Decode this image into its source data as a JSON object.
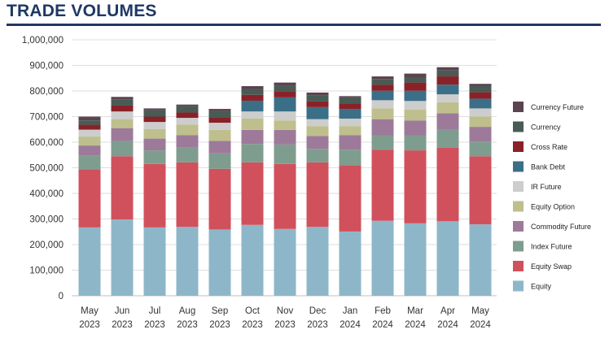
{
  "chart_data": {
    "type": "bar",
    "stacked": true,
    "title": "TRADE VOLUMES",
    "xlabel": "",
    "ylabel": "",
    "ylim": [
      0,
      1000000
    ],
    "yticks": [
      "0",
      "100,000",
      "200,000",
      "300,000",
      "400,000",
      "500,000",
      "600,000",
      "700,000",
      "800,000",
      "900,000",
      "1,000,000"
    ],
    "grid": true,
    "legend_position": "right",
    "categories": [
      [
        "May",
        "2023"
      ],
      [
        "Jun",
        "2023"
      ],
      [
        "Jul",
        "2023"
      ],
      [
        "Aug",
        "2023"
      ],
      [
        "Sep",
        "2023"
      ],
      [
        "Oct",
        "2023"
      ],
      [
        "Nov",
        "2023"
      ],
      [
        "Dec",
        "2023"
      ],
      [
        "Jan",
        "2024"
      ],
      [
        "Feb",
        "2024"
      ],
      [
        "Mar",
        "2024"
      ],
      [
        "Apr",
        "2024"
      ],
      [
        "May",
        "2024"
      ]
    ],
    "series": [
      {
        "name": "Equity",
        "color": "#8db7c9",
        "values": [
          267000,
          298000,
          267000,
          269000,
          259000,
          277000,
          261000,
          269000,
          251000,
          293000,
          283000,
          291000,
          279000
        ]
      },
      {
        "name": "Equity Swap",
        "color": "#d0515c",
        "values": [
          227000,
          247000,
          248000,
          252000,
          237000,
          244000,
          254000,
          252000,
          259000,
          278000,
          285000,
          288000,
          266000
        ]
      },
      {
        "name": "Index Future",
        "color": "#7f9d8f",
        "values": [
          53000,
          60000,
          53000,
          58000,
          60000,
          72000,
          76000,
          53000,
          61000,
          56000,
          59000,
          69000,
          57000
        ]
      },
      {
        "name": "Commodity Future",
        "color": "#9d7a9a",
        "values": [
          40000,
          50000,
          46000,
          48000,
          49000,
          55000,
          57000,
          50000,
          56000,
          63000,
          58000,
          65000,
          58000
        ]
      },
      {
        "name": "Equity Option",
        "color": "#bebf8d",
        "values": [
          35000,
          35000,
          37000,
          42000,
          43000,
          45000,
          37000,
          39000,
          36000,
          42000,
          42000,
          43000,
          40000
        ]
      },
      {
        "name": "IR Future",
        "color": "#cdcdcd",
        "values": [
          27000,
          30000,
          28000,
          26000,
          28000,
          27000,
          35000,
          27000,
          29000,
          32000,
          34000,
          31000,
          32000
        ]
      },
      {
        "name": "Bank Debt",
        "color": "#3b6f88",
        "values": [
          0,
          0,
          0,
          0,
          0,
          42000,
          55000,
          47000,
          37000,
          37000,
          40000,
          38000,
          38000
        ]
      },
      {
        "name": "Cross Rate",
        "color": "#8a2128",
        "values": [
          19000,
          23000,
          21000,
          21000,
          22000,
          23000,
          24000,
          22000,
          22000,
          24000,
          32000,
          32000,
          25000
        ]
      },
      {
        "name": "Currency",
        "color": "#485b54",
        "values": [
          17000,
          23000,
          25000,
          25000,
          24000,
          23000,
          23000,
          23000,
          24000,
          22000,
          21000,
          23000,
          24000
        ]
      },
      {
        "name": "Currency Future",
        "color": "#5b4350",
        "values": [
          15000,
          11000,
          7000,
          6000,
          8000,
          11000,
          11000,
          12000,
          5000,
          10000,
          14000,
          13000,
          9000
        ]
      }
    ]
  }
}
